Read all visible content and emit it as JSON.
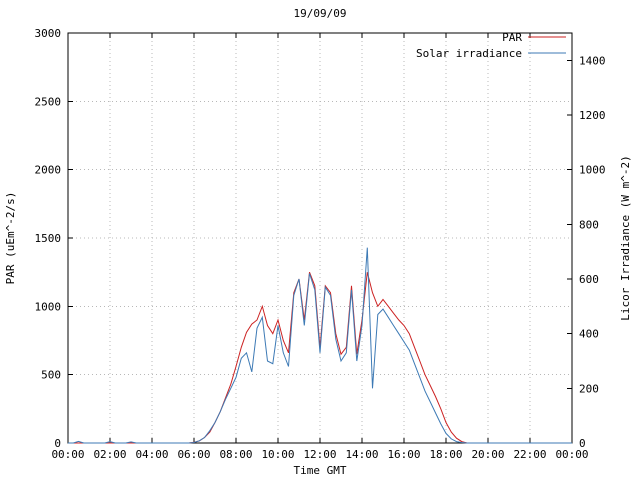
{
  "window": {
    "background": "#ffffff"
  },
  "chart_data": {
    "type": "line",
    "title": "19/09/09",
    "xlabel": "Time GMT",
    "ylabel_left": "PAR (uEm^-2/s)",
    "ylabel_right": "Licor Irradiance (W m^-2)",
    "legend_position": "top-right-inside",
    "grid": true,
    "xlim_minutes": [
      0,
      1440
    ],
    "ylim_left": [
      0,
      3000
    ],
    "ylim_right": [
      0,
      1500
    ],
    "x_ticks": [
      "00:00",
      "02:00",
      "04:00",
      "06:00",
      "08:00",
      "10:00",
      "12:00",
      "14:00",
      "16:00",
      "18:00",
      "20:00",
      "22:00",
      "00:00"
    ],
    "y_ticks_left": [
      0,
      500,
      1000,
      1500,
      2000,
      2500,
      3000
    ],
    "y_ticks_right": [
      0,
      200,
      400,
      600,
      800,
      1000,
      1200,
      1400
    ],
    "x_minutes": [
      0,
      15,
      30,
      45,
      60,
      75,
      90,
      105,
      120,
      135,
      150,
      165,
      180,
      195,
      210,
      225,
      240,
      255,
      270,
      285,
      300,
      315,
      330,
      345,
      360,
      375,
      390,
      405,
      420,
      435,
      450,
      465,
      480,
      495,
      510,
      525,
      540,
      555,
      570,
      585,
      600,
      615,
      630,
      645,
      660,
      675,
      690,
      705,
      720,
      735,
      750,
      765,
      780,
      795,
      810,
      825,
      840,
      855,
      870,
      885,
      900,
      915,
      930,
      945,
      960,
      975,
      990,
      1005,
      1020,
      1035,
      1050,
      1065,
      1080,
      1095,
      1110,
      1125,
      1140,
      1155,
      1170,
      1185,
      1200,
      1215,
      1230,
      1245,
      1260,
      1275,
      1290,
      1305,
      1320,
      1335,
      1350,
      1365,
      1380,
      1395,
      1410,
      1425,
      1440
    ],
    "series": [
      {
        "name": "PAR",
        "axis": "left",
        "units": "uEm^-2/s",
        "color": "#cc2222",
        "values": [
          0,
          0,
          0,
          0,
          0,
          0,
          0,
          0,
          0,
          0,
          0,
          0,
          0,
          0,
          0,
          0,
          0,
          0,
          0,
          0,
          0,
          0,
          0,
          0,
          5,
          15,
          40,
          80,
          150,
          230,
          330,
          430,
          560,
          700,
          810,
          870,
          900,
          1000,
          860,
          800,
          900,
          750,
          660,
          1100,
          1200,
          900,
          1250,
          1150,
          700,
          1150,
          1100,
          800,
          650,
          700,
          1150,
          650,
          900,
          1250,
          1100,
          1000,
          1050,
          1000,
          950,
          900,
          860,
          800,
          700,
          600,
          500,
          420,
          340,
          250,
          150,
          80,
          35,
          10,
          0,
          0,
          0,
          0,
          0,
          0,
          0,
          0,
          0,
          0,
          0,
          0,
          0,
          0,
          0,
          0,
          0,
          0,
          0,
          0,
          0
        ]
      },
      {
        "name": "Solar irradiance",
        "axis": "right",
        "units": "W m^-2",
        "color": "#3d7ab5",
        "values": [
          0,
          0,
          6,
          0,
          0,
          0,
          0,
          0,
          5,
          0,
          0,
          0,
          4,
          0,
          0,
          0,
          0,
          0,
          0,
          0,
          0,
          0,
          0,
          0,
          2,
          8,
          20,
          45,
          75,
          115,
          160,
          200,
          240,
          310,
          330,
          260,
          420,
          460,
          300,
          290,
          430,
          330,
          280,
          540,
          600,
          430,
          620,
          560,
          330,
          570,
          540,
          380,
          300,
          330,
          560,
          300,
          430,
          715,
          200,
          470,
          490,
          460,
          430,
          400,
          370,
          340,
          290,
          240,
          190,
          150,
          110,
          70,
          35,
          15,
          5,
          2,
          0,
          0,
          0,
          0,
          0,
          0,
          0,
          0,
          0,
          0,
          0,
          0,
          0,
          0,
          0,
          0,
          0,
          0,
          0,
          0,
          0
        ]
      }
    ]
  }
}
